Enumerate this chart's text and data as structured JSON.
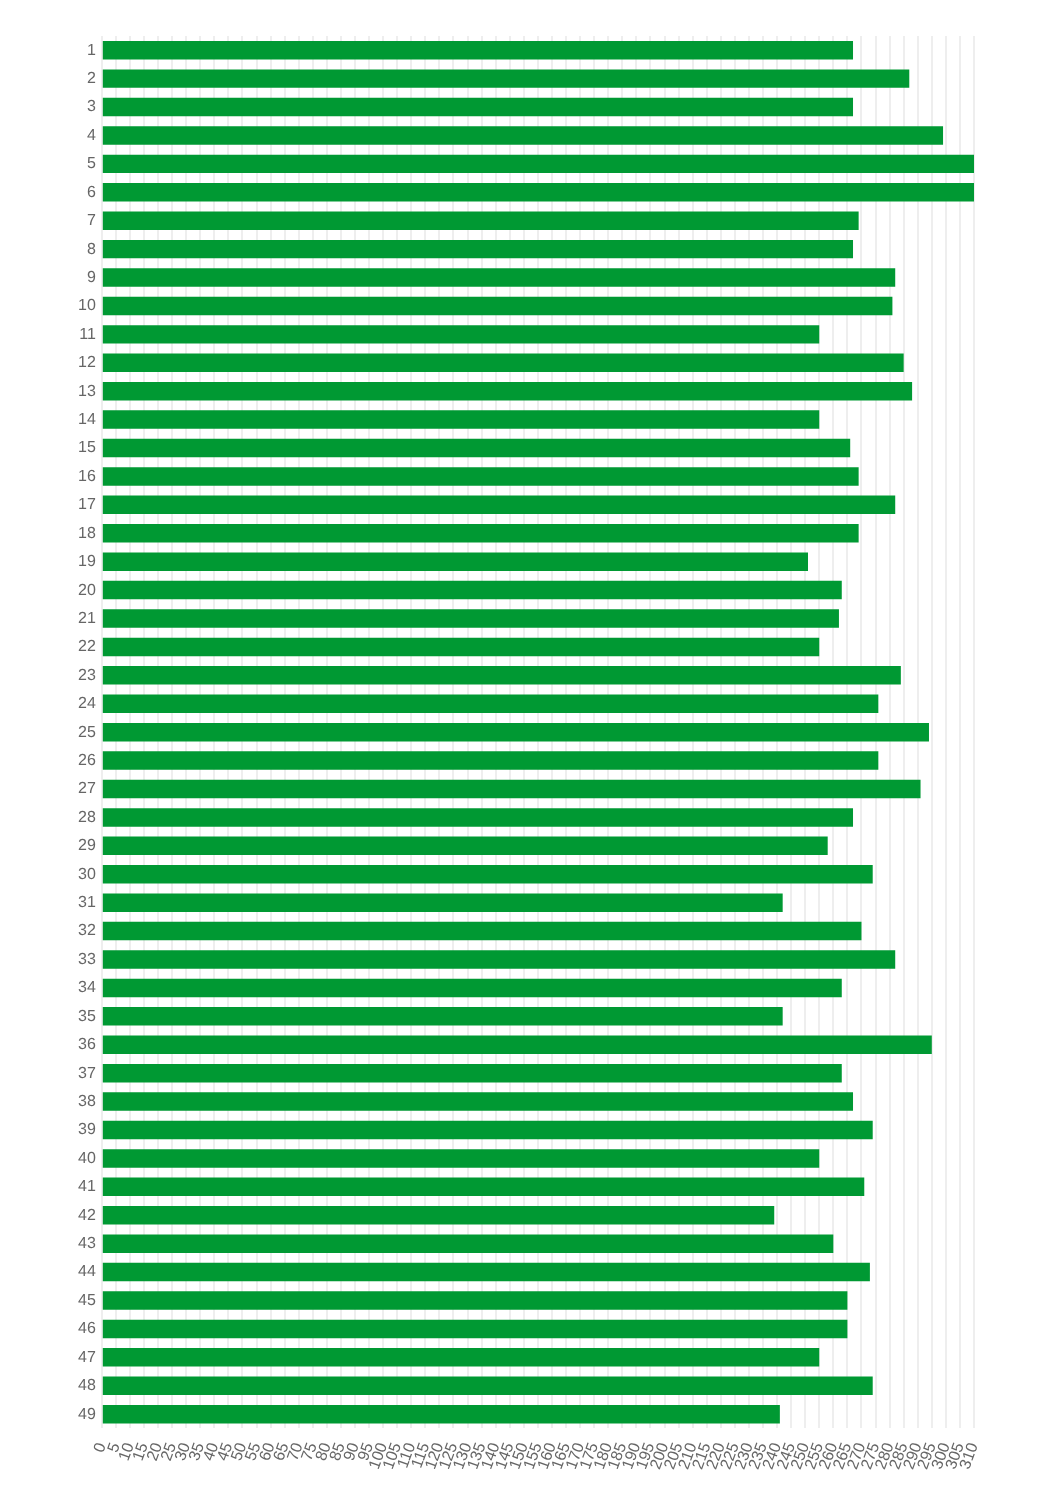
{
  "chart_data": {
    "type": "bar",
    "orientation": "horizontal",
    "categories": [
      "1",
      "2",
      "3",
      "4",
      "5",
      "6",
      "7",
      "8",
      "9",
      "10",
      "11",
      "12",
      "13",
      "14",
      "15",
      "16",
      "17",
      "18",
      "19",
      "20",
      "21",
      "22",
      "23",
      "24",
      "25",
      "26",
      "27",
      "28",
      "29",
      "30",
      "31",
      "32",
      "33",
      "34",
      "35",
      "36",
      "37",
      "38",
      "39",
      "40",
      "41",
      "42",
      "43",
      "44",
      "45",
      "46",
      "47",
      "48",
      "49"
    ],
    "values": [
      267,
      287,
      267,
      299,
      310,
      310,
      269,
      267,
      282,
      281,
      255,
      285,
      288,
      255,
      266,
      269,
      282,
      269,
      251,
      263,
      262,
      255,
      284,
      276,
      294,
      276,
      291,
      267,
      258,
      274,
      242,
      270,
      282,
      263,
      242,
      295,
      263,
      267,
      274,
      255,
      271,
      239,
      260,
      273,
      265,
      265,
      255,
      274,
      241
    ],
    "color": "#009933",
    "xlim": [
      0,
      310
    ],
    "xticks": [
      0,
      5,
      10,
      15,
      20,
      25,
      30,
      35,
      40,
      45,
      50,
      55,
      60,
      65,
      70,
      75,
      80,
      85,
      90,
      95,
      100,
      105,
      110,
      115,
      120,
      125,
      130,
      135,
      140,
      145,
      150,
      155,
      160,
      165,
      170,
      175,
      180,
      185,
      190,
      195,
      200,
      205,
      210,
      215,
      220,
      225,
      230,
      235,
      240,
      245,
      250,
      255,
      260,
      265,
      270,
      275,
      280,
      285,
      290,
      295,
      300,
      305,
      310
    ],
    "grid": "x"
  }
}
